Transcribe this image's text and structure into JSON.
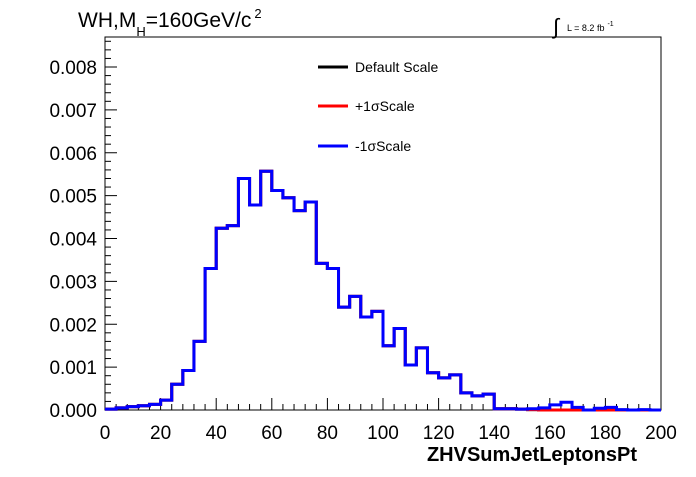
{
  "chart_data": {
    "type": "line",
    "style": "step-histogram",
    "title_parts": {
      "wh": "WH,M",
      "sub": "H",
      "eq": "=160GeV/c",
      "sup": "2"
    },
    "luminosity": {
      "integral_sign": "∫",
      "text": "L = 8.2 fb",
      "sup": "-1"
    },
    "xlabel": "ZHVSumJetLeptonsPt",
    "ylabel": "",
    "xlim": [
      0,
      200
    ],
    "ylim": [
      0,
      0.0087
    ],
    "x_ticks": [
      "0",
      "20",
      "40",
      "60",
      "80",
      "100",
      "120",
      "140",
      "160",
      "180",
      "200"
    ],
    "y_ticks": [
      "0.000",
      "0.001",
      "0.002",
      "0.003",
      "0.004",
      "0.005",
      "0.006",
      "0.007",
      "0.008"
    ],
    "grid": false,
    "legend_position": "top-center",
    "bin_edges_start": 0,
    "bin_width": 4,
    "series": [
      {
        "name": "Default Scale",
        "color": "#000000",
        "values": [
          2e-05,
          5e-05,
          8e-05,
          0.0001,
          0.00013,
          0.00023,
          0.0006,
          0.00092,
          0.0016,
          0.0033,
          0.00424,
          0.0043,
          0.0054,
          0.00478,
          0.00557,
          0.00512,
          0.00495,
          0.00465,
          0.00485,
          0.00342,
          0.0033,
          0.0024,
          0.00265,
          0.00217,
          0.0023,
          0.0015,
          0.0019,
          0.00105,
          0.00145,
          0.00087,
          0.00075,
          0.00082,
          0.0004,
          0.00033,
          0.00037,
          3e-05,
          3e-05,
          2e-05,
          1e-05,
          0.0,
          0.0,
          0.0,
          0.0,
          0.0,
          0.0,
          0.0,
          0.0,
          0.0,
          0.0,
          0.0
        ]
      },
      {
        "name": "+1σScale",
        "color": "#ff0000",
        "values": [
          2e-05,
          5e-05,
          8e-05,
          0.0001,
          0.00013,
          0.00023,
          0.0006,
          0.00092,
          0.0016,
          0.0033,
          0.00424,
          0.0043,
          0.0054,
          0.00478,
          0.00557,
          0.00512,
          0.00495,
          0.00465,
          0.00485,
          0.00342,
          0.0033,
          0.0024,
          0.00265,
          0.00217,
          0.0023,
          0.0015,
          0.0019,
          0.00105,
          0.00145,
          0.00087,
          0.00075,
          0.00082,
          0.0004,
          0.00033,
          0.00037,
          3e-05,
          3e-05,
          2e-05,
          1e-05,
          0.0,
          0.0,
          0.0,
          0.0,
          0.0,
          0.0,
          0.0,
          0.0,
          0.0,
          0.0,
          0.0
        ]
      },
      {
        "name": "-1σScale",
        "color": "#0000ff",
        "values": [
          2e-05,
          5e-05,
          8e-05,
          0.0001,
          0.00013,
          0.00023,
          0.0006,
          0.00092,
          0.0016,
          0.0033,
          0.00424,
          0.0043,
          0.0054,
          0.00478,
          0.00557,
          0.00512,
          0.00495,
          0.00465,
          0.00485,
          0.00342,
          0.0033,
          0.0024,
          0.00265,
          0.00217,
          0.0023,
          0.0015,
          0.0019,
          0.00105,
          0.00145,
          0.00087,
          0.00075,
          0.00082,
          0.0004,
          0.00033,
          0.00037,
          3e-05,
          3e-05,
          2e-05,
          3e-05,
          5e-05,
          0.00012,
          0.00018,
          6e-05,
          0.0,
          4e-05,
          6e-05,
          1e-05,
          0.0,
          1e-05,
          0.0
        ]
      }
    ]
  }
}
